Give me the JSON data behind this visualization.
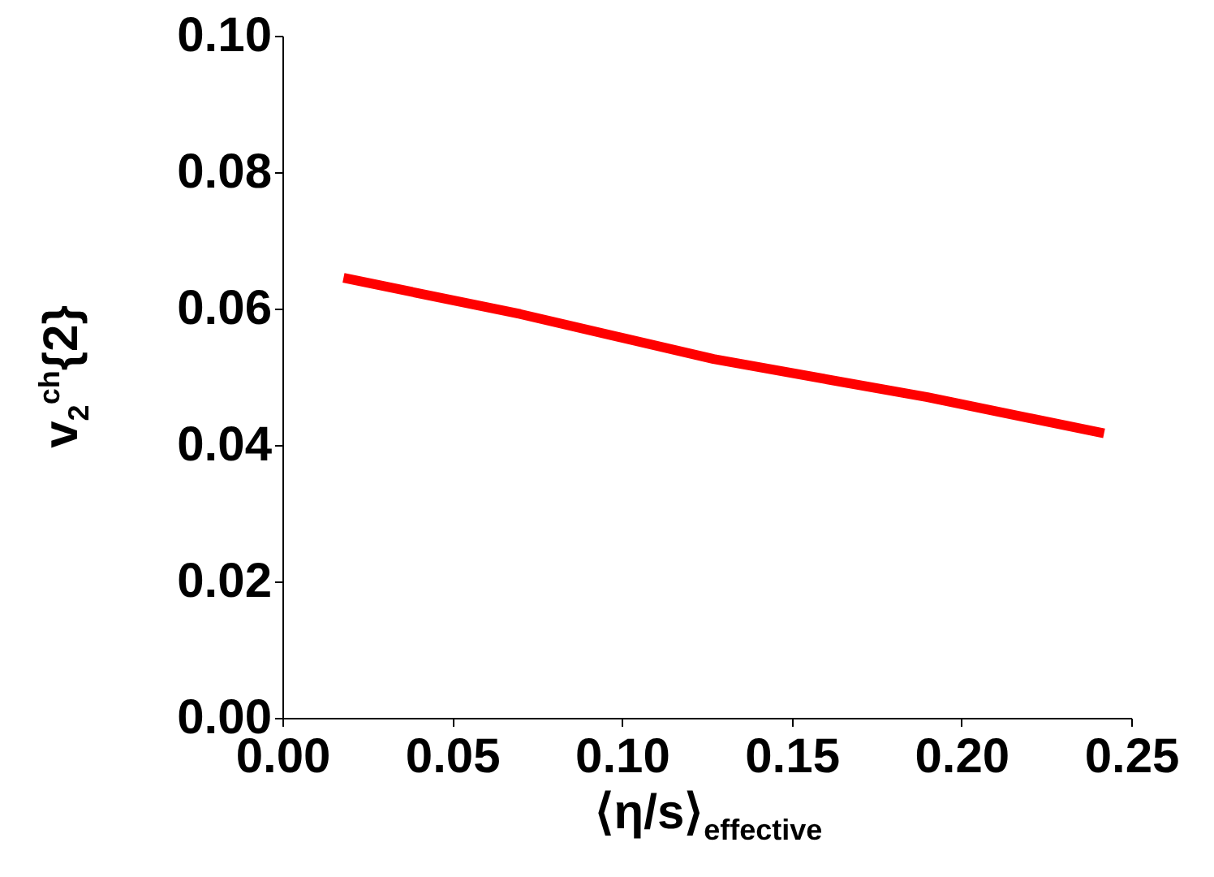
{
  "chart_data": {
    "type": "line",
    "xlabel": "⟨η/s⟩$_{effective}$",
    "ylabel": "v$_{2}$$^{ch}${2}",
    "x": [
      0.018,
      0.07,
      0.127,
      0.19,
      0.242
    ],
    "series": [
      {
        "color": "#ff0000",
        "values": [
          0.0645,
          0.0592,
          0.0526,
          0.047,
          0.0417
        ]
      }
    ],
    "xlim": [
      0,
      0.25
    ],
    "ylim": [
      0,
      0.1
    ],
    "xticks": [
      {
        "value": 0,
        "label": "0.00"
      },
      {
        "value": 0.05,
        "label": "0.05"
      },
      {
        "value": 0.1,
        "label": "0.10"
      },
      {
        "value": 0.15,
        "label": "0.15"
      },
      {
        "value": 0.2,
        "label": "0.20"
      },
      {
        "value": 0.25,
        "label": "0.25"
      }
    ],
    "yticks": [
      {
        "value": 0,
        "label": "0.00"
      },
      {
        "value": 0.02,
        "label": "0.02"
      },
      {
        "value": 0.04,
        "label": "0.04"
      },
      {
        "value": 0.06,
        "label": "0.06"
      },
      {
        "value": 0.08,
        "label": "0.08"
      },
      {
        "value": 0.1,
        "label": "0.10"
      }
    ],
    "grid": false,
    "marker": "none",
    "line_style": "solid"
  }
}
